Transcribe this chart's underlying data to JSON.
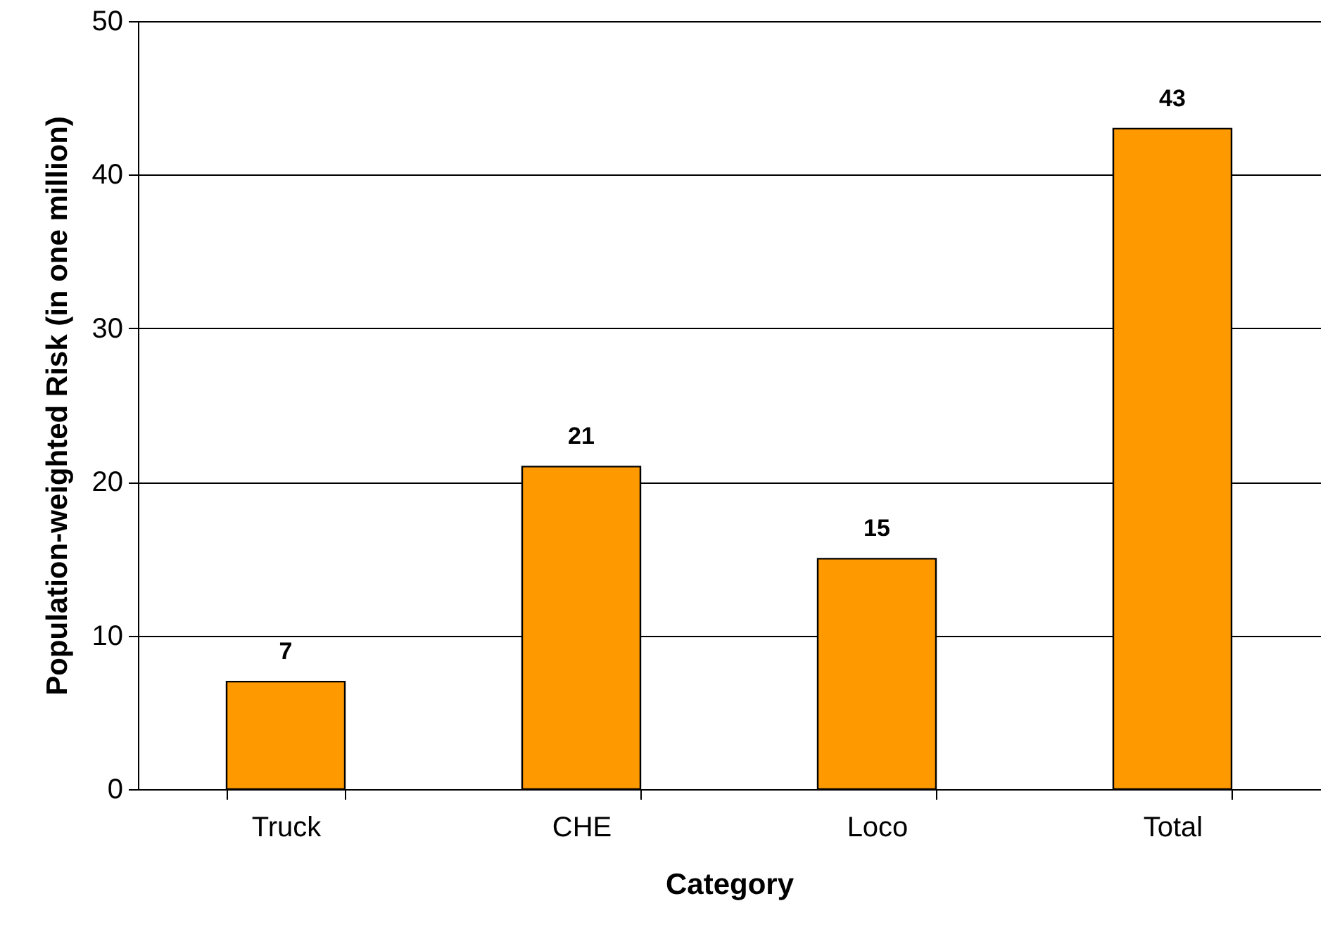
{
  "chart_data": {
    "type": "bar",
    "xlabel": "Category",
    "ylabel": "Population-weighted Risk (in one million)",
    "categories": [
      "Truck",
      "CHE",
      "Loco",
      "Total"
    ],
    "values": [
      7,
      21,
      15,
      43
    ],
    "color": "#ff9900",
    "ylim": [
      0,
      50
    ],
    "yticks": [
      0,
      10,
      20,
      30,
      40,
      50
    ],
    "grid": "y",
    "data_labels": true
  }
}
